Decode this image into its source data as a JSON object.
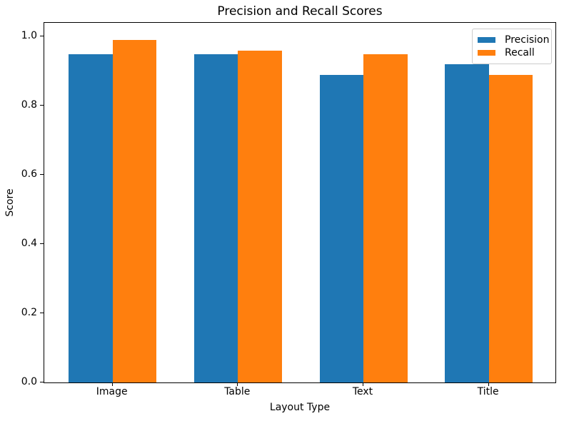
{
  "chart_data": {
    "type": "bar",
    "title": "Precision and Recall Scores",
    "xlabel": "Layout Type",
    "ylabel": "Score",
    "categories": [
      "Image",
      "Table",
      "Text",
      "Title"
    ],
    "series": [
      {
        "name": "Precision",
        "color": "#1f77b4",
        "values": [
          0.95,
          0.95,
          0.89,
          0.92
        ]
      },
      {
        "name": "Recall",
        "color": "#ff7f0e",
        "values": [
          0.99,
          0.96,
          0.95,
          0.89
        ]
      }
    ],
    "ylim": [
      0,
      1.04
    ],
    "yticks": [
      "0.0",
      "0.2",
      "0.4",
      "0.6",
      "0.8",
      "1.0"
    ],
    "bar_width": 0.35,
    "grid": false,
    "legend_position": "upper right",
    "background_color": "#ffffff",
    "spine_color": "#000000"
  }
}
